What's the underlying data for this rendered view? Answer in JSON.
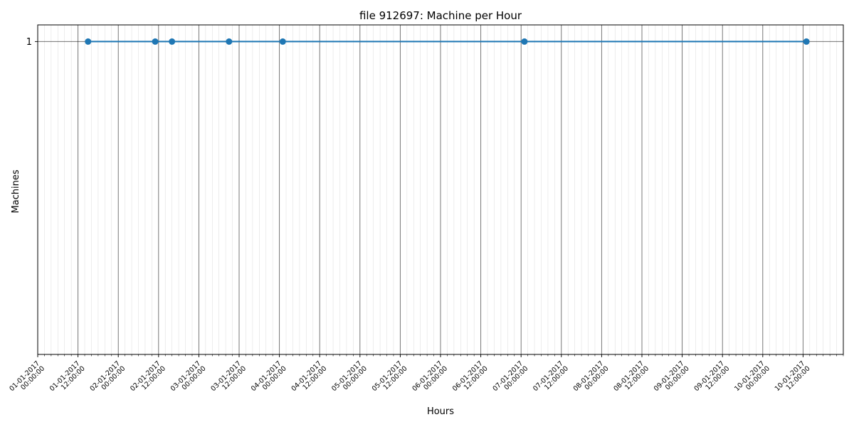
{
  "chart_data": {
    "type": "line",
    "title": "file 912697: Machine per Hour",
    "xlabel": "Hours",
    "ylabel": "Machines",
    "x_ticks": [
      "01-01-2017 00:00:00",
      "01-01-2017 12:00:00",
      "02-01-2017 00:00:00",
      "02-01-2017 12:00:00",
      "03-01-2017 00:00:00",
      "03-01-2017 12:00:00",
      "04-01-2017 00:00:00",
      "04-01-2017 12:00:00",
      "05-01-2017 00:00:00",
      "05-01-2017 12:00:00",
      "06-01-2017 00:00:00",
      "06-01-2017 12:00:00",
      "07-01-2017 00:00:00",
      "07-01-2017 12:00:00",
      "08-01-2017 00:00:00",
      "08-01-2017 12:00:00",
      "09-01-2017 00:00:00",
      "09-01-2017 12:00:00",
      "10-01-2017 00:00:00",
      "10-01-2017 12:00:00"
    ],
    "y_ticks": [
      1
    ],
    "xlim": [
      "01-01-2017 00:00:00",
      "11-01-2017 00:00:00"
    ],
    "ylim": [
      0.06,
      1.05
    ],
    "grid": true,
    "series": [
      {
        "color": "#1f77b4",
        "points": [
          {
            "x": "01-01-2017 15:00:00",
            "y": 1
          },
          {
            "x": "02-01-2017 11:00:00",
            "y": 1
          },
          {
            "x": "02-01-2017 16:00:00",
            "y": 1
          },
          {
            "x": "03-01-2017 09:00:00",
            "y": 1
          },
          {
            "x": "04-01-2017 01:00:00",
            "y": 1
          },
          {
            "x": "07-01-2017 01:00:00",
            "y": 1
          },
          {
            "x": "10-01-2017 13:00:00",
            "y": 1
          }
        ]
      }
    ]
  }
}
